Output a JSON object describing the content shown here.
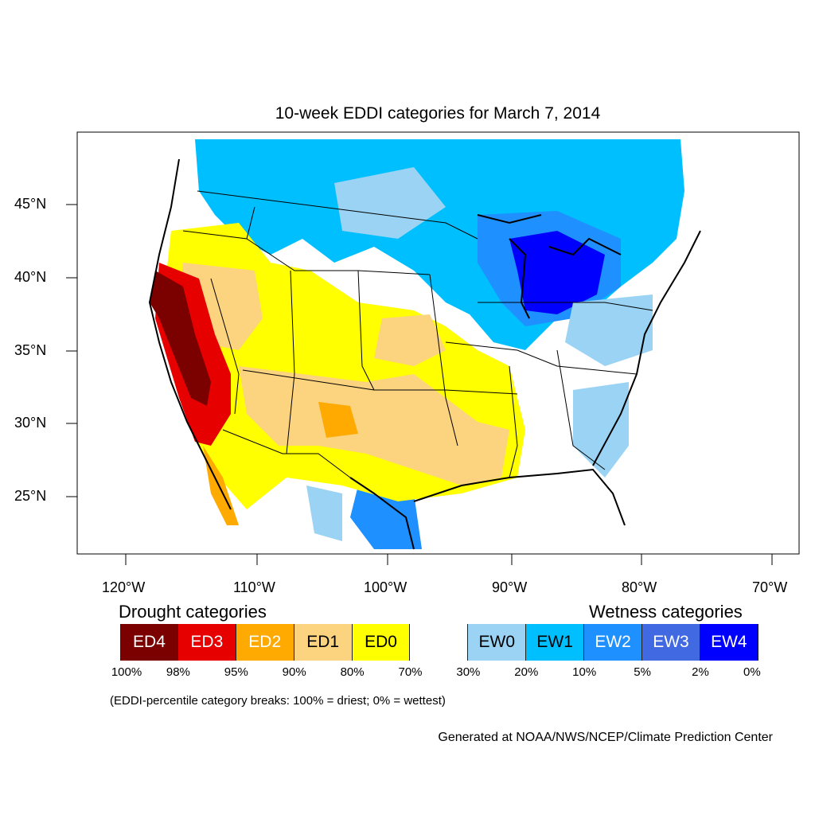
{
  "title": "10-week EDDI categories for March 7, 2014",
  "lat_labels": [
    "45°N",
    "40°N",
    "35°N",
    "30°N",
    "25°N"
  ],
  "lon_labels": [
    "120°W",
    "110°W",
    "100°W",
    "90°W",
    "80°W",
    "70°W"
  ],
  "legend": {
    "drought_title": "Drought categories",
    "wetness_title": "Wetness categories",
    "categories": [
      {
        "label": "ED4",
        "color": "#7b0000",
        "text_color": "#ffffff"
      },
      {
        "label": "ED3",
        "color": "#e60000",
        "text_color": "#ffffff"
      },
      {
        "label": "ED2",
        "color": "#ffaa00",
        "text_color": "#ffffff"
      },
      {
        "label": "ED1",
        "color": "#fcd37f",
        "text_color": "#000000"
      },
      {
        "label": "ED0",
        "color": "#ffff00",
        "text_color": "#000000"
      },
      {
        "label": "",
        "color": "#ffffff",
        "text_color": "#000000"
      },
      {
        "label": "EW0",
        "color": "#9ad3f3",
        "text_color": "#000000"
      },
      {
        "label": "EW1",
        "color": "#00bfff",
        "text_color": "#000000"
      },
      {
        "label": "EW2",
        "color": "#1e90ff",
        "text_color": "#ffffff"
      },
      {
        "label": "EW3",
        "color": "#4169e1",
        "text_color": "#ffffff"
      },
      {
        "label": "EW4",
        "color": "#0000ff",
        "text_color": "#ffffff"
      }
    ],
    "percentiles": [
      "100%",
      "98%",
      "95%",
      "90%",
      "80%",
      "70%",
      "30%",
      "20%",
      "10%",
      "5%",
      "2%",
      "0%"
    ],
    "note": "(EDDI-percentile category breaks: 100% = driest; 0% = wettest)"
  },
  "credit": "Generated at NOAA/NWS/NCEP/Climate Prediction Center"
}
